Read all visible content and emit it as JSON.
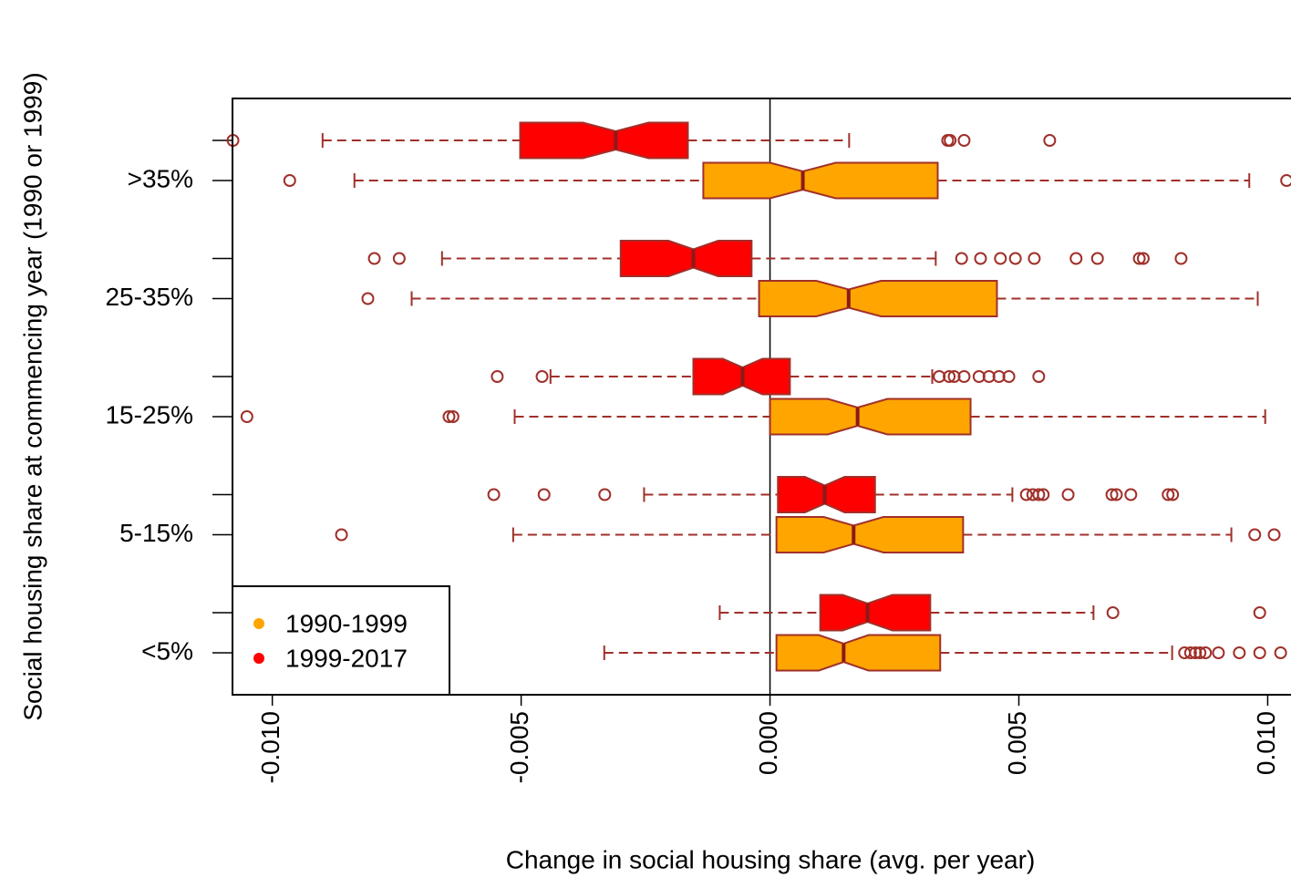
{
  "chart_data": {
    "type": "boxplot",
    "orientation": "horizontal",
    "notched": true,
    "x_label": "Change in social housing share (avg. per year)",
    "y_label": "Social housing share at commencing year (1990 or 1999)",
    "categories": [
      "<5%",
      "5-15%",
      "15-25%",
      "25-35%",
      ">35%"
    ],
    "xlim": [
      -0.0108,
      0.01045
    ],
    "xticks": [
      {
        "value": -0.01,
        "label": "-0.010"
      },
      {
        "value": -0.005,
        "label": "-0.005"
      },
      {
        "value": 0,
        "label": "0.000"
      },
      {
        "value": 0.005,
        "label": "0.005"
      },
      {
        "value": 0.01,
        "label": "0.010"
      }
    ],
    "vline": 0,
    "legend_position": "bottom-left",
    "series": [
      {
        "name": "1990-1999",
        "color": "#FFA500",
        "boxes": [
          {
            "low": -0.00333,
            "q1": 0.00013,
            "median": 0.00148,
            "q3": 0.00342,
            "high": 0.00808,
            "notch": [
              0.00098,
              0.00198
            ],
            "outliers": [
              0.00833,
              0.00845,
              0.00855,
              0.00864,
              0.00875,
              0.00901,
              0.00943,
              0.00984,
              0.01026
            ]
          },
          {
            "low": -0.00516,
            "q1": 0.00013,
            "median": 0.00168,
            "q3": 0.00388,
            "high": 0.00927,
            "notch": [
              0.00108,
              0.00228
            ],
            "outliers": [
              -0.00861,
              0.00974,
              0.01013
            ]
          },
          {
            "low": -0.00513,
            "q1": 0.0,
            "median": 0.00176,
            "q3": 0.00403,
            "high": 0.00995,
            "notch": [
              0.00116,
              0.00236
            ],
            "outliers": [
              -0.01051,
              -0.00645,
              -0.00637
            ]
          },
          {
            "low": -0.0072,
            "q1": -0.00022,
            "median": 0.00158,
            "q3": 0.00456,
            "high": 0.0098,
            "notch": [
              0.00093,
              0.00223
            ],
            "outliers": [
              -0.00808
            ]
          },
          {
            "low": -0.00835,
            "q1": -0.00134,
            "median": 0.00066,
            "q3": 0.00337,
            "high": 0.00963,
            "notch": [
              0.0,
              0.00132
            ],
            "outliers": [
              -0.00965,
              0.01038
            ]
          }
        ]
      },
      {
        "name": "1999-2017",
        "color": "#FF0000",
        "boxes": [
          {
            "low": -0.00101,
            "q1": 0.00101,
            "median": 0.00196,
            "q3": 0.00322,
            "high": 0.0065,
            "notch": [
              0.00146,
              0.00246
            ],
            "outliers": [
              0.00689,
              0.00984
            ]
          },
          {
            "low": -0.00253,
            "q1": 0.00016,
            "median": 0.0011,
            "q3": 0.00211,
            "high": 0.00487,
            "notch": [
              0.0007,
              0.0015
            ],
            "outliers": [
              -0.00555,
              -0.00454,
              -0.00332,
              0.00515,
              0.00528,
              0.0054,
              0.00549,
              0.00599,
              0.00687,
              0.00696,
              0.00725,
              0.008,
              0.00809
            ]
          },
          {
            "low": -0.00441,
            "q1": -0.00154,
            "median": -0.00055,
            "q3": 0.0004,
            "high": 0.00326,
            "notch": [
              -0.00095,
              -0.00015
            ],
            "outliers": [
              -0.00548,
              -0.00458,
              0.0034,
              0.0036,
              0.0037,
              0.0039,
              0.0042,
              0.0044,
              0.0046,
              0.0048,
              0.0054
            ]
          },
          {
            "low": -0.00659,
            "q1": -0.003,
            "median": -0.00154,
            "q3": -0.00037,
            "high": 0.00333,
            "notch": [
              -0.00204,
              -0.00104
            ],
            "outliers": [
              -0.00795,
              -0.00745,
              0.00385,
              0.00423,
              0.00463,
              0.00493,
              0.00531,
              0.00615,
              0.00658,
              0.00742,
              0.0075,
              0.00826
            ]
          },
          {
            "low": -0.00899,
            "q1": -0.00502,
            "median": -0.0031,
            "q3": -0.00165,
            "high": 0.00159,
            "notch": [
              -0.00376,
              -0.00244
            ],
            "outliers": [
              -0.01079,
              0.00357,
              0.00362,
              0.0039,
              0.00562
            ]
          }
        ]
      }
    ]
  }
}
